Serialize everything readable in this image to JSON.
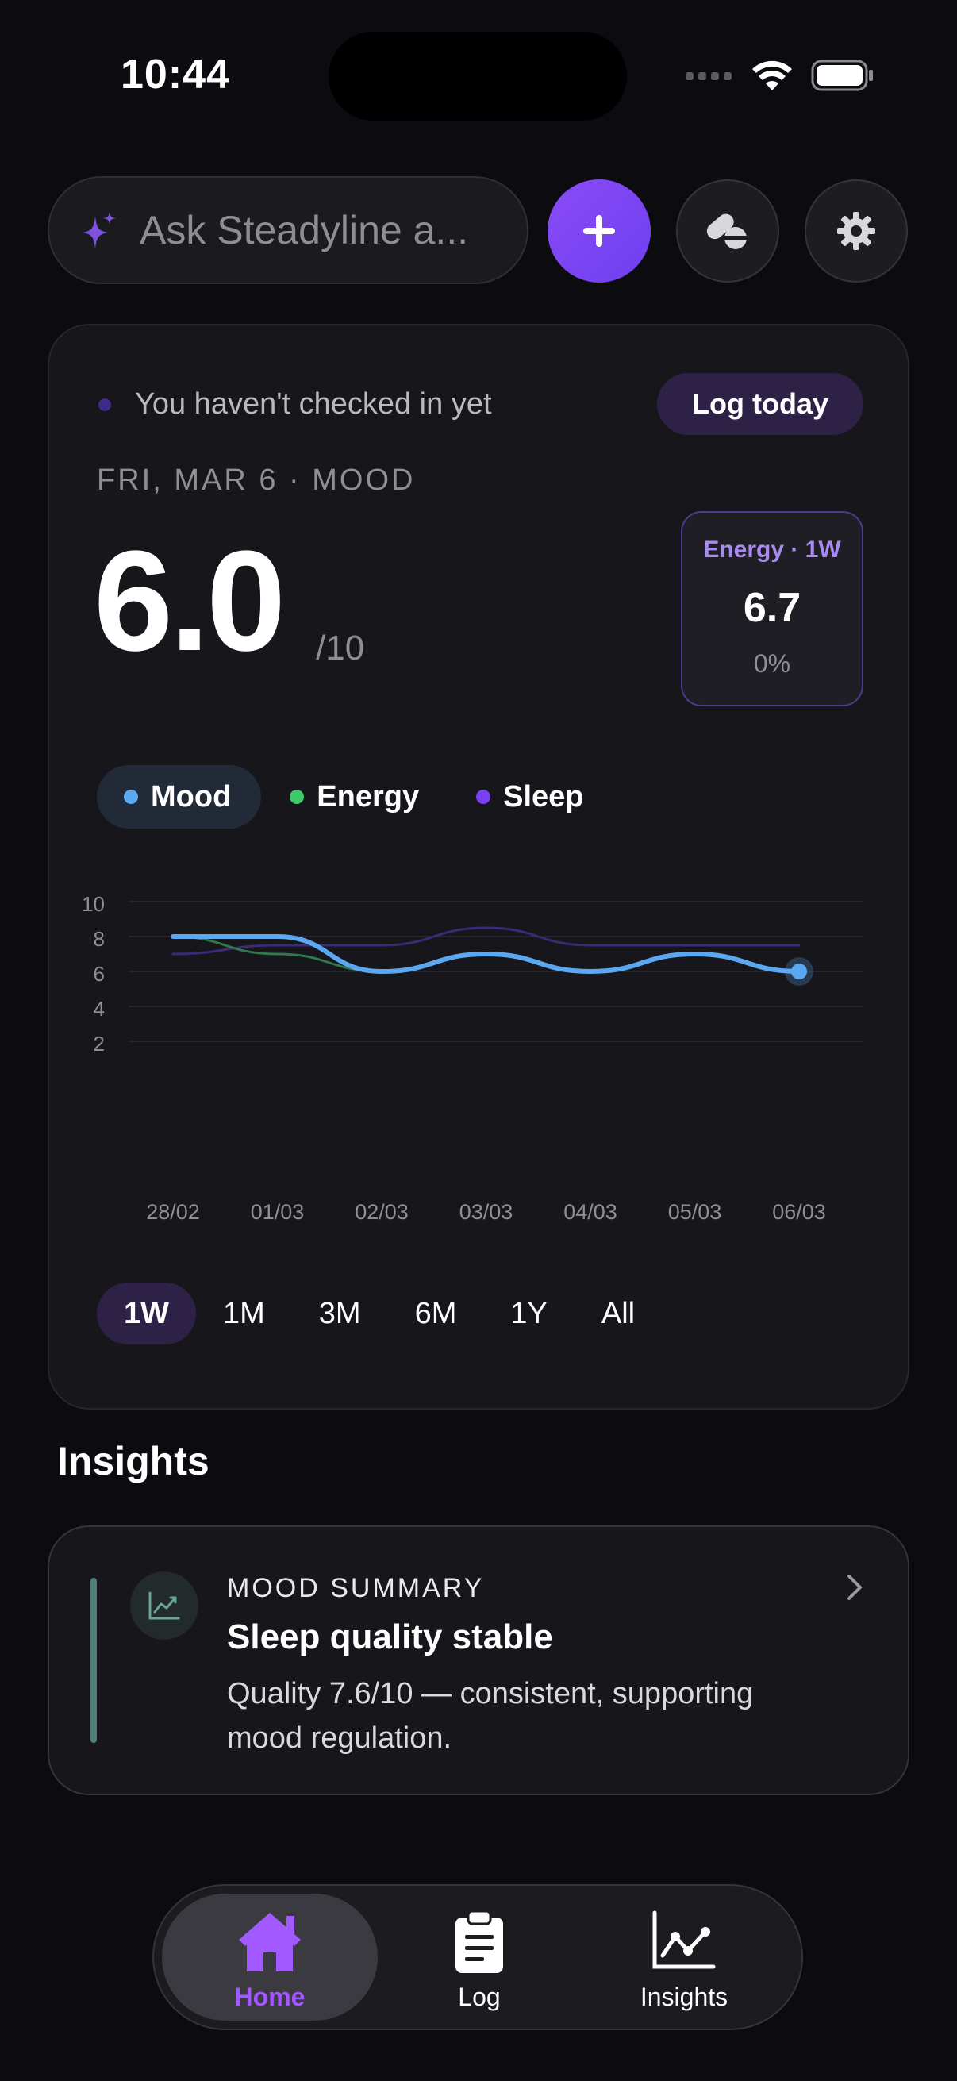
{
  "status_bar": {
    "time": "10:44"
  },
  "search": {
    "placeholder": "Ask Steadyline a..."
  },
  "checkin": {
    "status_text": "You haven't checked in yet",
    "log_button": "Log today"
  },
  "mood": {
    "date_line": "FRI, MAR 6 · MOOD",
    "value": "6.0",
    "unit": "/10"
  },
  "energy_card": {
    "label": "Energy · 1W",
    "value": "6.7",
    "change": "0%"
  },
  "legend": [
    {
      "label": "Mood",
      "color": "#5aa9f0",
      "active": true
    },
    {
      "label": "Energy",
      "color": "#3fc96b",
      "active": false
    },
    {
      "label": "Sleep",
      "color": "#7a3ff0",
      "active": false
    }
  ],
  "chart_data": {
    "type": "line",
    "x": [
      "28/02",
      "01/03",
      "02/03",
      "03/03",
      "04/03",
      "05/03",
      "06/03"
    ],
    "y_ticks": [
      10,
      8,
      6,
      4,
      2
    ],
    "ylim": [
      0,
      10
    ],
    "series": [
      {
        "name": "Mood",
        "values": [
          8,
          8,
          6,
          7,
          6,
          7,
          6
        ],
        "color": "#5aa9f0"
      },
      {
        "name": "Energy",
        "values": [
          8,
          7,
          6,
          null,
          null,
          null,
          null
        ],
        "color": "#2e7a4a"
      },
      {
        "name": "Sleep",
        "values": [
          7,
          7.5,
          7.5,
          8.5,
          7.5,
          7.5,
          7.5
        ],
        "color": "#3b2a78"
      }
    ]
  },
  "ranges": [
    {
      "label": "1W",
      "active": true
    },
    {
      "label": "1M",
      "active": false
    },
    {
      "label": "3M",
      "active": false
    },
    {
      "label": "6M",
      "active": false
    },
    {
      "label": "1Y",
      "active": false
    },
    {
      "label": "All",
      "active": false
    }
  ],
  "insights": {
    "heading": "Insights",
    "card": {
      "kicker": "MOOD SUMMARY",
      "title": "Sleep quality stable",
      "body": "Quality 7.6/10 — consistent, supporting mood regulation."
    }
  },
  "tabs": [
    {
      "label": "Home",
      "icon": "home-icon",
      "active": true
    },
    {
      "label": "Log",
      "icon": "clipboard-icon",
      "active": false
    },
    {
      "label": "Insights",
      "icon": "chart-icon",
      "active": false
    }
  ]
}
